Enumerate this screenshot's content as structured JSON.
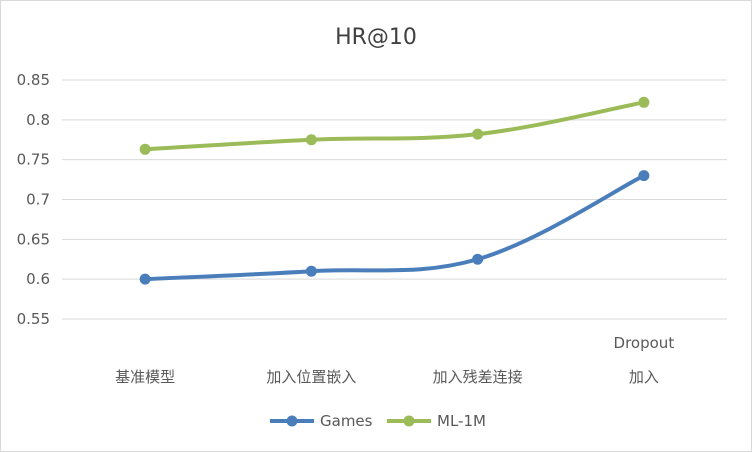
{
  "chart_data": {
    "type": "line",
    "title": "HR@10",
    "categories": [
      [
        "基准模型"
      ],
      [
        "加入位置嵌入"
      ],
      [
        "加入残差连接"
      ],
      [
        "Dropout",
        "加入"
      ]
    ],
    "yticks": [
      "0.55",
      "0.6",
      "0.65",
      "0.7",
      "0.75",
      "0.8",
      "0.85"
    ],
    "ylim": [
      0.55,
      0.85
    ],
    "grid": true,
    "legend_position": "bottom",
    "series": [
      {
        "name": "Games",
        "color": "#4a7ebb",
        "values": [
          0.6,
          0.61,
          0.625,
          0.73
        ]
      },
      {
        "name": "ML-1M",
        "color": "#9bbb59",
        "values": [
          0.763,
          0.775,
          0.782,
          0.822
        ]
      }
    ]
  }
}
